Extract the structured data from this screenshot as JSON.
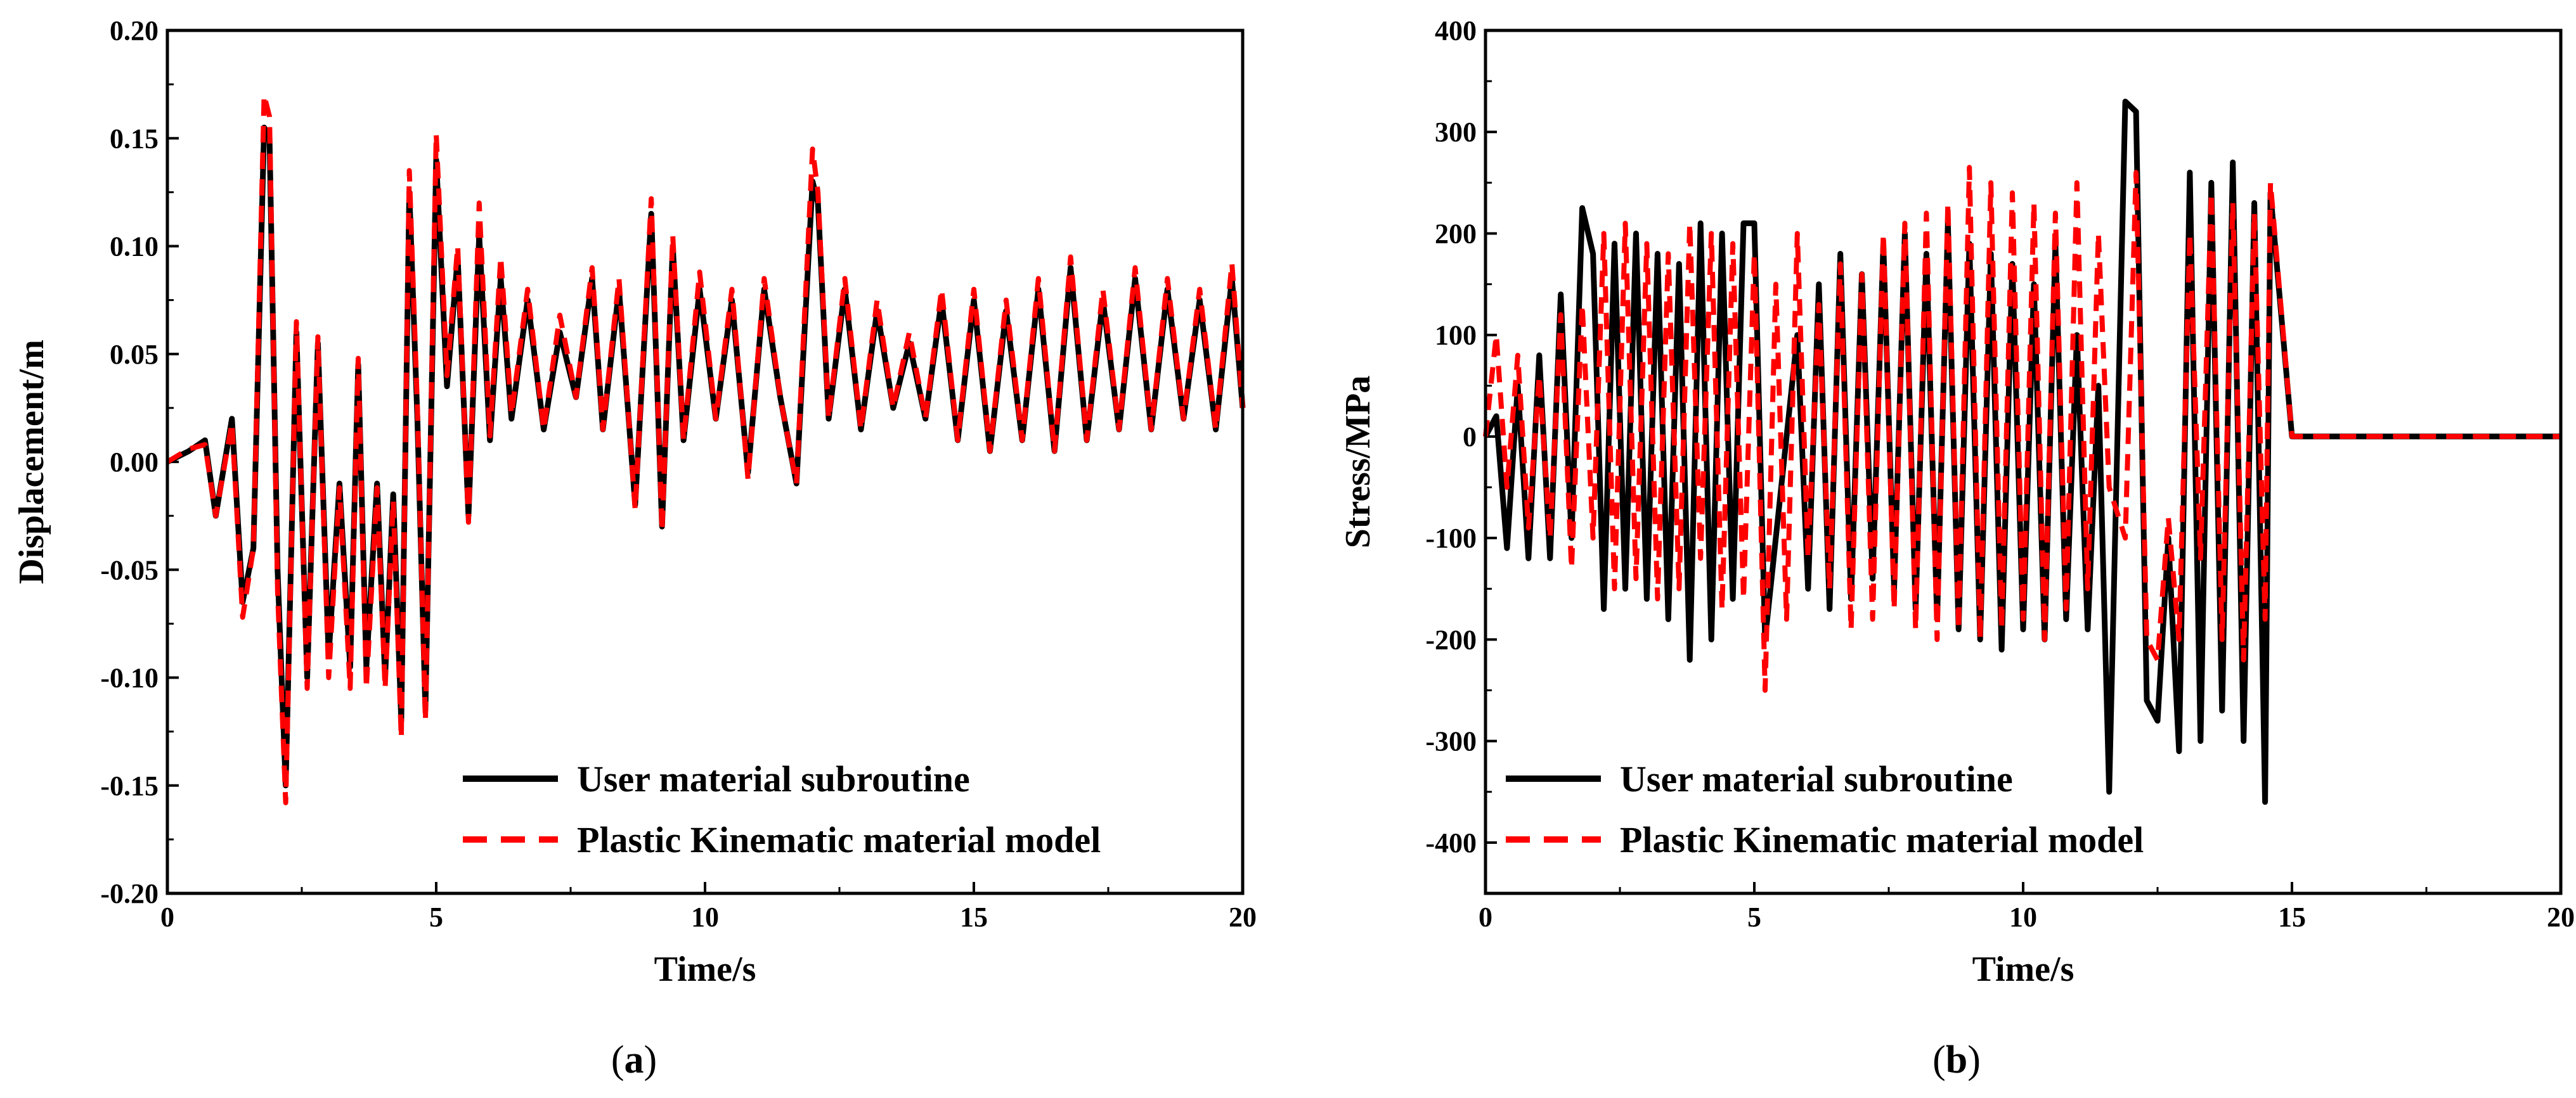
{
  "chart_data": [
    {
      "type": "line",
      "panel": "(a)",
      "panel_letter": "a",
      "xlabel": "Time/s",
      "ylabel": "Displacement/m",
      "xlim": [
        0,
        20
      ],
      "ylim": [
        -0.2,
        0.2
      ],
      "x_ticks": [
        0,
        5,
        10,
        15,
        20
      ],
      "y_ticks": [
        -0.2,
        -0.15,
        -0.1,
        -0.05,
        0.0,
        0.05,
        0.1,
        0.15,
        0.2
      ],
      "x_tick_labels": [
        "0",
        "5",
        "10",
        "15",
        "20"
      ],
      "y_tick_labels": [
        "-0.20",
        "-0.15",
        "-0.10",
        "-0.05",
        "0.00",
        "0.05",
        "0.10",
        "0.15",
        "0.20"
      ],
      "legend_position": "bottom-right",
      "series": [
        {
          "name": "User material subroutine",
          "color": "#000000",
          "style": "solid",
          "x": [
            0,
            0.4,
            0.7,
            0.9,
            1.2,
            1.4,
            1.6,
            1.8,
            1.9,
            2.05,
            2.2,
            2.4,
            2.6,
            2.8,
            3.0,
            3.2,
            3.4,
            3.55,
            3.7,
            3.9,
            4.05,
            4.2,
            4.35,
            4.5,
            4.65,
            4.8,
            5.0,
            5.2,
            5.4,
            5.6,
            5.8,
            6.0,
            6.2,
            6.4,
            6.7,
            7.0,
            7.3,
            7.6,
            7.9,
            8.1,
            8.4,
            8.7,
            9.0,
            9.2,
            9.4,
            9.6,
            9.9,
            10.2,
            10.5,
            10.8,
            11.1,
            11.4,
            11.7,
            12.0,
            12.1,
            12.3,
            12.6,
            12.9,
            13.2,
            13.5,
            13.8,
            14.1,
            14.4,
            14.7,
            15.0,
            15.3,
            15.6,
            15.9,
            16.2,
            16.5,
            16.8,
            17.1,
            17.4,
            17.7,
            18.0,
            18.3,
            18.6,
            18.9,
            19.2,
            19.5,
            19.8,
            20.0
          ],
          "y": [
            0.0,
            0.005,
            0.01,
            -0.025,
            0.02,
            -0.065,
            -0.04,
            0.155,
            0.15,
            -0.05,
            -0.15,
            0.06,
            -0.1,
            0.055,
            -0.09,
            -0.01,
            -0.095,
            0.045,
            -0.095,
            -0.01,
            -0.1,
            -0.015,
            -0.12,
            0.125,
            0.02,
            -0.115,
            0.14,
            0.035,
            0.095,
            -0.025,
            0.105,
            0.01,
            0.085,
            0.02,
            0.075,
            0.015,
            0.06,
            0.03,
            0.085,
            0.015,
            0.08,
            -0.02,
            0.115,
            -0.03,
            0.1,
            0.01,
            0.08,
            0.02,
            0.075,
            -0.005,
            0.08,
            0.03,
            -0.01,
            0.13,
            0.12,
            0.02,
            0.08,
            0.015,
            0.07,
            0.025,
            0.055,
            0.02,
            0.075,
            0.01,
            0.075,
            0.005,
            0.07,
            0.01,
            0.08,
            0.005,
            0.09,
            0.01,
            0.075,
            0.015,
            0.085,
            0.015,
            0.08,
            0.02,
            0.075,
            0.015,
            0.085,
            0.025
          ]
        },
        {
          "name": "Plastic Kinematic material model",
          "color": "#ff0000",
          "style": "dashed",
          "x": [
            0,
            0.4,
            0.7,
            0.9,
            1.2,
            1.4,
            1.6,
            1.8,
            1.9,
            2.05,
            2.2,
            2.4,
            2.6,
            2.8,
            3.0,
            3.2,
            3.4,
            3.55,
            3.7,
            3.9,
            4.05,
            4.2,
            4.35,
            4.5,
            4.65,
            4.8,
            5.0,
            5.2,
            5.4,
            5.6,
            5.8,
            6.0,
            6.2,
            6.4,
            6.7,
            7.0,
            7.3,
            7.6,
            7.9,
            8.1,
            8.4,
            8.7,
            9.0,
            9.2,
            9.4,
            9.6,
            9.9,
            10.2,
            10.5,
            10.8,
            11.1,
            11.4,
            11.7,
            12.0,
            12.1,
            12.3,
            12.6,
            12.9,
            13.2,
            13.5,
            13.8,
            14.1,
            14.4,
            14.7,
            15.0,
            15.3,
            15.6,
            15.9,
            16.2,
            16.5,
            16.8,
            17.1,
            17.4,
            17.7,
            18.0,
            18.3,
            18.6,
            18.9,
            19.2,
            19.5,
            19.8,
            20.0
          ],
          "y": [
            0.0,
            0.006,
            0.008,
            -0.025,
            0.018,
            -0.072,
            -0.04,
            0.17,
            0.16,
            -0.06,
            -0.158,
            0.065,
            -0.105,
            0.058,
            -0.1,
            -0.012,
            -0.105,
            0.048,
            -0.105,
            -0.012,
            -0.105,
            -0.018,
            -0.128,
            0.135,
            0.025,
            -0.12,
            0.152,
            0.04,
            0.1,
            -0.028,
            0.12,
            0.012,
            0.095,
            0.022,
            0.08,
            0.015,
            0.068,
            0.03,
            0.09,
            0.015,
            0.085,
            -0.022,
            0.122,
            -0.032,
            0.105,
            0.01,
            0.088,
            0.02,
            0.08,
            -0.008,
            0.085,
            0.03,
            -0.01,
            0.145,
            0.125,
            0.02,
            0.085,
            0.015,
            0.075,
            0.025,
            0.06,
            0.02,
            0.08,
            0.01,
            0.08,
            0.005,
            0.075,
            0.01,
            0.085,
            0.005,
            0.095,
            0.01,
            0.08,
            0.015,
            0.09,
            0.015,
            0.085,
            0.02,
            0.08,
            0.015,
            0.092,
            0.025
          ]
        }
      ]
    },
    {
      "type": "line",
      "panel": "(b)",
      "panel_letter": "b",
      "xlabel": "Time/s",
      "ylabel": "Stress/MPa",
      "xlim": [
        0,
        20
      ],
      "ylim": [
        -450,
        400
      ],
      "x_ticks": [
        0,
        5,
        10,
        15,
        20
      ],
      "y_ticks": [
        -400,
        -300,
        -200,
        -100,
        0,
        100,
        200,
        300,
        400
      ],
      "x_tick_labels": [
        "0",
        "5",
        "10",
        "15",
        "20"
      ],
      "y_tick_labels": [
        "-400",
        "-300",
        "-200",
        "-100",
        "0",
        "100",
        "200",
        "300",
        "400"
      ],
      "legend_position": "bottom-left",
      "series": [
        {
          "name": "User material subroutine",
          "color": "#000000",
          "style": "solid",
          "x": [
            0,
            0.2,
            0.4,
            0.6,
            0.8,
            1.0,
            1.2,
            1.4,
            1.6,
            1.8,
            2.0,
            2.2,
            2.4,
            2.6,
            2.8,
            3.0,
            3.2,
            3.4,
            3.6,
            3.8,
            4.0,
            4.2,
            4.4,
            4.6,
            4.8,
            5.0,
            5.2,
            5.4,
            5.6,
            5.8,
            6.0,
            6.2,
            6.4,
            6.6,
            6.8,
            7.0,
            7.2,
            7.4,
            7.6,
            7.8,
            8.0,
            8.2,
            8.4,
            8.6,
            8.8,
            9.0,
            9.2,
            9.4,
            9.6,
            9.8,
            10.0,
            10.2,
            10.4,
            10.6,
            10.8,
            11.0,
            11.2,
            11.4,
            11.6,
            11.9,
            12.1,
            12.3,
            12.5,
            12.7,
            12.9,
            13.1,
            13.3,
            13.5,
            13.7,
            13.9,
            14.1,
            14.3,
            14.5,
            14.6,
            15.0,
            17.5,
            20.0
          ],
          "y": [
            0,
            20,
            -110,
            50,
            -120,
            80,
            -120,
            140,
            -100,
            225,
            180,
            -170,
            190,
            -150,
            200,
            -160,
            180,
            -180,
            170,
            -220,
            210,
            -200,
            200,
            -160,
            210,
            210,
            -200,
            -100,
            0,
            100,
            -150,
            150,
            -170,
            180,
            -160,
            160,
            -140,
            190,
            -150,
            200,
            -170,
            180,
            -180,
            210,
            -190,
            190,
            -200,
            180,
            -210,
            170,
            -190,
            150,
            -200,
            190,
            -180,
            100,
            -190,
            50,
            -350,
            330,
            320,
            -260,
            -280,
            -100,
            -310,
            260,
            -300,
            250,
            -270,
            270,
            -300,
            230,
            -360,
            240,
            0,
            0,
            0
          ]
        },
        {
          "name": "Plastic Kinematic material model",
          "color": "#ff0000",
          "style": "dashed",
          "x": [
            0,
            0.2,
            0.4,
            0.6,
            0.8,
            1.0,
            1.2,
            1.4,
            1.6,
            1.8,
            2.0,
            2.2,
            2.4,
            2.6,
            2.8,
            3.0,
            3.2,
            3.4,
            3.6,
            3.8,
            4.0,
            4.2,
            4.4,
            4.6,
            4.8,
            5.0,
            5.2,
            5.4,
            5.6,
            5.8,
            6.0,
            6.2,
            6.4,
            6.6,
            6.8,
            7.0,
            7.2,
            7.4,
            7.6,
            7.8,
            8.0,
            8.2,
            8.4,
            8.6,
            8.8,
            9.0,
            9.2,
            9.4,
            9.6,
            9.8,
            10.0,
            10.2,
            10.4,
            10.6,
            10.8,
            11.0,
            11.2,
            11.4,
            11.6,
            11.9,
            12.1,
            12.3,
            12.5,
            12.7,
            12.9,
            13.1,
            13.3,
            13.5,
            13.7,
            13.9,
            14.1,
            14.3,
            14.5,
            14.6,
            15.0,
            17.5,
            20.0
          ],
          "y": [
            0,
            100,
            -50,
            80,
            -90,
            60,
            -100,
            120,
            -130,
            130,
            -100,
            200,
            -150,
            210,
            -140,
            190,
            -160,
            180,
            -150,
            210,
            -120,
            200,
            -170,
            190,
            -160,
            180,
            -250,
            150,
            -180,
            200,
            -120,
            130,
            -150,
            170,
            -190,
            160,
            -180,
            200,
            -170,
            210,
            -190,
            220,
            -200,
            230,
            -190,
            265,
            -200,
            250,
            -190,
            240,
            -180,
            230,
            -200,
            220,
            -170,
            250,
            -150,
            200,
            -50,
            -100,
            260,
            -200,
            -220,
            -80,
            -200,
            200,
            -120,
            240,
            -200,
            230,
            -220,
            220,
            -180,
            250,
            0,
            0,
            0
          ]
        }
      ]
    }
  ]
}
